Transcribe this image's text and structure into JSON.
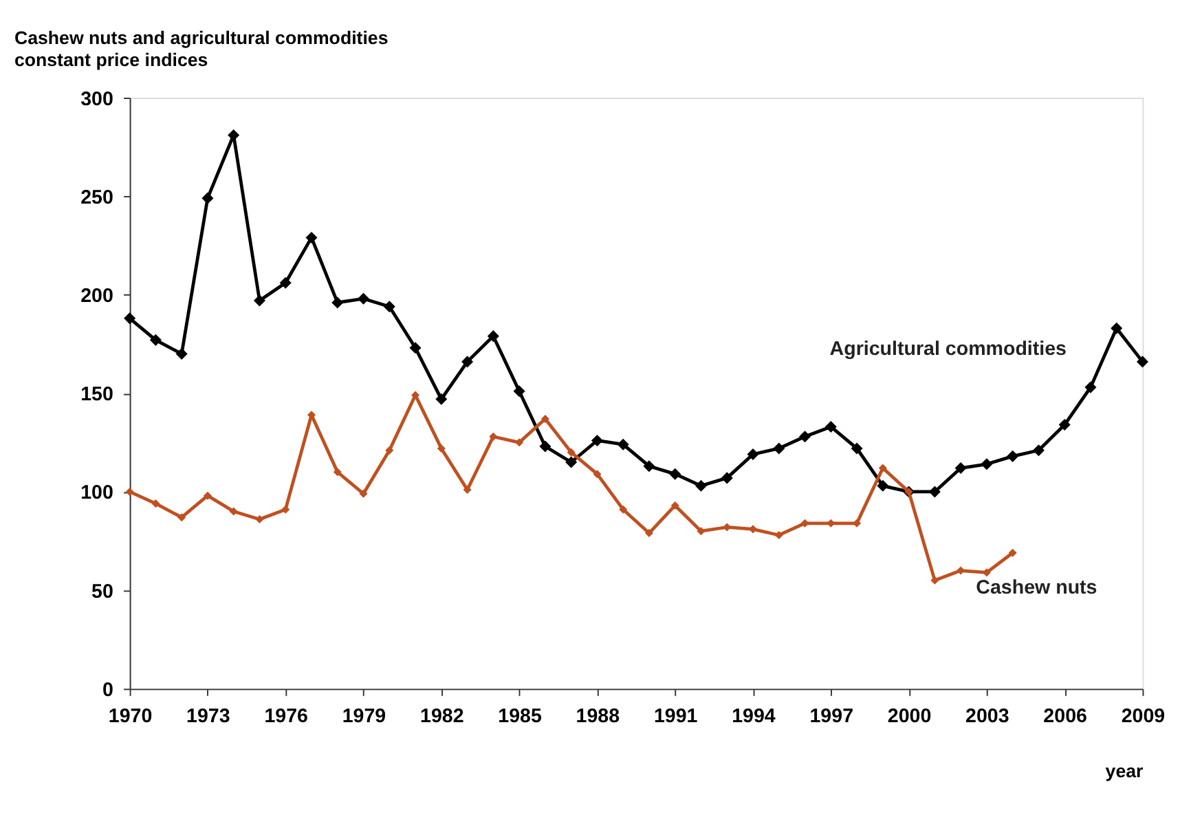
{
  "chart_data": {
    "type": "line",
    "title": "Cashew nuts and agricultural commodities constant price indices",
    "xlabel": "year",
    "x": [
      1970,
      1971,
      1972,
      1973,
      1974,
      1975,
      1976,
      1977,
      1978,
      1979,
      1980,
      1981,
      1982,
      1983,
      1984,
      1985,
      1986,
      1987,
      1988,
      1989,
      1990,
      1991,
      1992,
      1993,
      1994,
      1995,
      1996,
      1997,
      1998,
      1999,
      2000,
      2001,
      2002,
      2003,
      2004,
      2005,
      2006,
      2007,
      2008,
      2009
    ],
    "series": [
      {
        "name": "Agricultural commodities",
        "color": "#000000",
        "values": [
          188,
          177,
          170,
          249,
          281,
          197,
          206,
          229,
          196,
          198,
          194,
          173,
          147,
          166,
          179,
          151,
          123,
          115,
          126,
          124,
          113,
          109,
          103,
          107,
          119,
          122,
          128,
          133,
          122,
          103,
          100,
          100,
          112,
          114,
          118,
          121,
          134,
          153,
          183,
          166
        ]
      },
      {
        "name": "Cashew nuts",
        "color": "#c0501f",
        "values": [
          100,
          94,
          87,
          98,
          90,
          86,
          91,
          139,
          110,
          99,
          121,
          149,
          122,
          101,
          128,
          125,
          137,
          120,
          109,
          91,
          79,
          93,
          80,
          82,
          81,
          78,
          84,
          84,
          84,
          112,
          100,
          55,
          60,
          59,
          69,
          null,
          null,
          null,
          null,
          null
        ]
      }
    ],
    "xlim": [
      1970,
      2009
    ],
    "xticks": [
      1970,
      1973,
      1976,
      1979,
      1982,
      1985,
      1988,
      1991,
      1994,
      1997,
      2000,
      2003,
      2006,
      2009
    ],
    "ylim": [
      0,
      300
    ],
    "yticks": [
      0,
      50,
      100,
      150,
      200,
      250,
      300
    ],
    "grid": false,
    "marker": "diamond",
    "line_style": "solid"
  }
}
